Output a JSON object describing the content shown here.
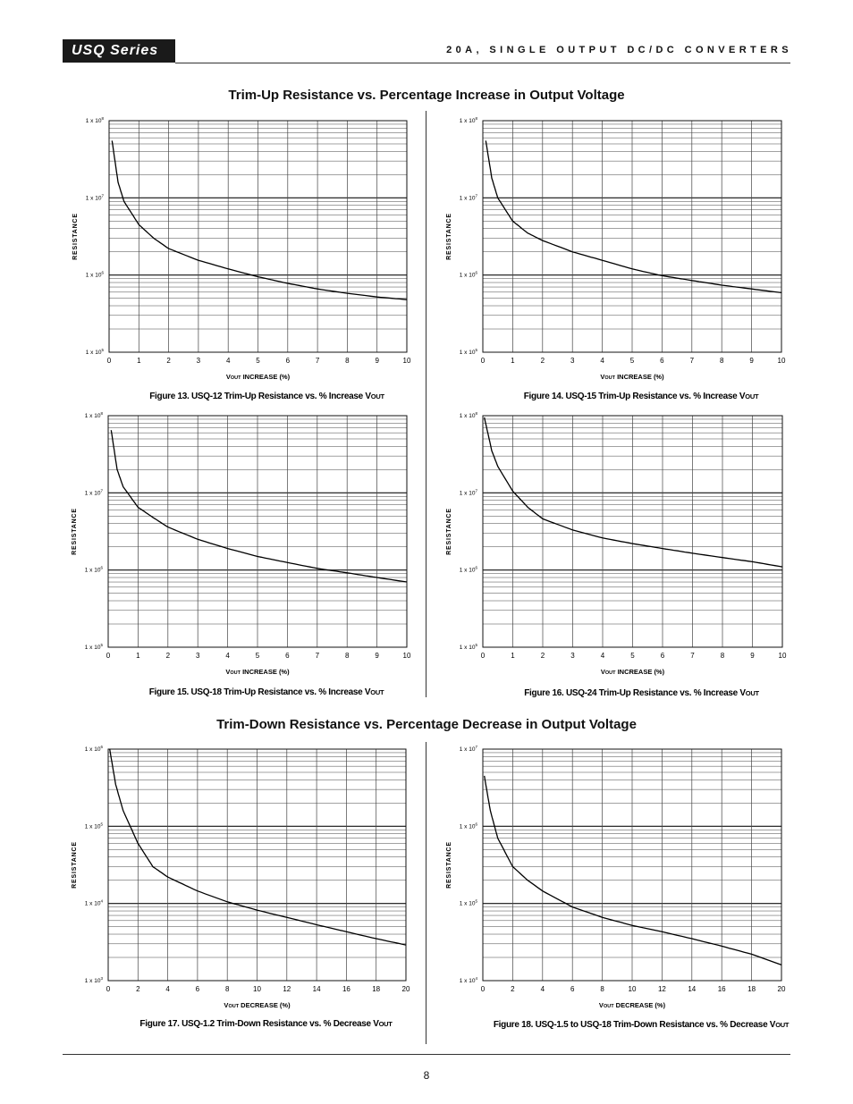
{
  "header": {
    "series_badge": "USQ Series",
    "title": "20A, SINGLE OUTPUT DC/DC CONVERTERS"
  },
  "sections": {
    "trim_up_title": "Trim-Up Resistance vs. Percentage Increase in Output Voltage",
    "trim_down_title": "Trim-Down Resistance vs. Percentage Decrease in Output Voltage"
  },
  "footer": {
    "page_number": "8"
  },
  "colors": {
    "grid": "#444444",
    "curve": "#000000",
    "badge_bg": "#1a1a1a"
  },
  "chart_data": [
    {
      "id": "fig13",
      "type": "line",
      "y_scale": "log",
      "caption_prefix": "Figure 13. USQ-12 Trim-Up Resistance vs. % Increase V",
      "caption_sub": "OUT",
      "xlabel_prefix": "V",
      "xlabel_sub": "OUT",
      "xlabel_suffix": " INCREASE (%)",
      "ylabel": "RESISTANCE",
      "xlim": [
        0,
        10
      ],
      "xticks": [
        "0",
        "1",
        "2",
        "3",
        "4",
        "5",
        "6",
        "7",
        "8",
        "9",
        "10"
      ],
      "ylim_exp": [
        5,
        8
      ],
      "yticks": [
        {
          "base": "1 x 10",
          "exp": "5"
        },
        {
          "base": "1 x 10",
          "exp": "6"
        },
        {
          "base": "1 x 10",
          "exp": "7"
        },
        {
          "base": "1 x 10",
          "exp": "8"
        }
      ],
      "x": [
        0.1,
        0.3,
        0.5,
        1,
        1.5,
        2,
        3,
        4,
        5,
        6,
        7,
        8,
        9,
        10
      ],
      "y": [
        55000000,
        16000000,
        9000000,
        4500000,
        3000000,
        2200000,
        1550000,
        1200000,
        950000,
        780000,
        660000,
        580000,
        520000,
        480000
      ]
    },
    {
      "id": "fig14",
      "type": "line",
      "y_scale": "log",
      "caption_prefix": "Figure 14. USQ-15 Trim-Up Resistance vs. % Increase V",
      "caption_sub": "OUT",
      "xlabel_prefix": "V",
      "xlabel_sub": "OUT",
      "xlabel_suffix": " INCREASE (%)",
      "ylabel": "RESISTANCE",
      "xlim": [
        0,
        10
      ],
      "xticks": [
        "0",
        "1",
        "2",
        "3",
        "4",
        "5",
        "6",
        "7",
        "8",
        "9",
        "10"
      ],
      "ylim_exp": [
        5,
        8
      ],
      "yticks": [
        {
          "base": "1 x 10",
          "exp": "5"
        },
        {
          "base": "1 x 10",
          "exp": "6"
        },
        {
          "base": "1 x 10",
          "exp": "7"
        },
        {
          "base": "1 x 10",
          "exp": "8"
        }
      ],
      "x": [
        0.1,
        0.3,
        0.5,
        1,
        1.5,
        2,
        3,
        4,
        5,
        6,
        7,
        8,
        9,
        10
      ],
      "y": [
        55000000,
        18000000,
        10000000,
        5000000,
        3500000,
        2800000,
        2000000,
        1550000,
        1200000,
        980000,
        850000,
        740000,
        660000,
        590000
      ]
    },
    {
      "id": "fig15",
      "type": "line",
      "y_scale": "log",
      "caption_prefix": "Figure 15. USQ-18 Trim-Up Resistance vs. % Increase V",
      "caption_sub": "OUT",
      "xlabel_prefix": "V",
      "xlabel_sub": "OUT",
      "xlabel_suffix": " INCREASE (%)",
      "ylabel": "RESISTANCE",
      "xlim": [
        0,
        10
      ],
      "xticks": [
        "0",
        "1",
        "2",
        "3",
        "4",
        "5",
        "6",
        "7",
        "8",
        "9",
        "10"
      ],
      "ylim_exp": [
        5,
        8
      ],
      "yticks": [
        {
          "base": "1 x 10",
          "exp": "5"
        },
        {
          "base": "1 x 10",
          "exp": "6"
        },
        {
          "base": "1 x 10",
          "exp": "7"
        },
        {
          "base": "1 x 10",
          "exp": "8"
        }
      ],
      "x": [
        0.1,
        0.3,
        0.5,
        1,
        1.5,
        2,
        3,
        4,
        5,
        6,
        7,
        8,
        9,
        10
      ],
      "y": [
        65000000,
        20000000,
        12000000,
        6500000,
        4800000,
        3600000,
        2500000,
        1900000,
        1500000,
        1250000,
        1050000,
        920000,
        800000,
        700000
      ]
    },
    {
      "id": "fig16",
      "type": "line",
      "y_scale": "log",
      "caption_prefix": "Figure 16. USQ-24 Trim-Up Resistance vs. % Increase V",
      "caption_sub": "OUT",
      "xlabel_prefix": "V",
      "xlabel_sub": "OUT",
      "xlabel_suffix": " INCREASE (%)",
      "ylabel": "RESISTANCE",
      "xlim": [
        0,
        10
      ],
      "xticks": [
        "0",
        "1",
        "2",
        "3",
        "4",
        "5",
        "6",
        "7",
        "8",
        "9",
        "10"
      ],
      "ylim_exp": [
        5,
        8
      ],
      "yticks": [
        {
          "base": "1 x 10",
          "exp": "5"
        },
        {
          "base": "1 x 10",
          "exp": "6"
        },
        {
          "base": "1 x 10",
          "exp": "7"
        },
        {
          "base": "1 x 10",
          "exp": "8"
        }
      ],
      "x": [
        0.05,
        0.3,
        0.5,
        1,
        1.5,
        2,
        3,
        4,
        5,
        6,
        7,
        8,
        9,
        10
      ],
      "y": [
        95000000,
        35000000,
        22000000,
        10500000,
        6500000,
        4600000,
        3300000,
        2600000,
        2200000,
        1900000,
        1650000,
        1450000,
        1280000,
        1100000
      ]
    },
    {
      "id": "fig17",
      "type": "line",
      "y_scale": "log",
      "caption_prefix": "Figure 17. USQ-1.2 Trim-Down Resistance vs. % Decrease V",
      "caption_sub": "OUT",
      "xlabel_prefix": "V",
      "xlabel_sub": "OUT",
      "xlabel_suffix": " DECREASE (%)",
      "ylabel": "RESISTANCE",
      "xlim": [
        0,
        20
      ],
      "xticks": [
        "0",
        "2",
        "4",
        "6",
        "8",
        "10",
        "12",
        "14",
        "16",
        "18",
        "20"
      ],
      "ylim_exp": [
        3,
        6
      ],
      "yticks": [
        {
          "base": "1 x 10",
          "exp": "3"
        },
        {
          "base": "1 x 10",
          "exp": "4"
        },
        {
          "base": "1 x 10",
          "exp": "5"
        },
        {
          "base": "1 x 10",
          "exp": "6"
        }
      ],
      "x": [
        0.1,
        0.5,
        1,
        2,
        3,
        4,
        6,
        8,
        10,
        12,
        14,
        16,
        18,
        20
      ],
      "y": [
        1000000,
        350000,
        160000,
        60000,
        30000,
        22000,
        14500,
        10500,
        8200,
        6600,
        5300,
        4300,
        3500,
        2900
      ]
    },
    {
      "id": "fig18",
      "type": "line",
      "y_scale": "log",
      "caption_prefix": "Figure 18. USQ-1.5 to USQ-18 Trim-Down Resistance vs. % Decrease V",
      "caption_sub": "OUT",
      "xlabel_prefix": "V",
      "xlabel_sub": "OUT",
      "xlabel_suffix": " DECREASE (%)",
      "ylabel": "RESISTANCE",
      "xlim": [
        0,
        20
      ],
      "xticks": [
        "0",
        "2",
        "4",
        "6",
        "8",
        "10",
        "12",
        "14",
        "16",
        "18",
        "20"
      ],
      "ylim_exp": [
        4,
        7
      ],
      "yticks": [
        {
          "base": "1 x 10",
          "exp": "4"
        },
        {
          "base": "1 x 10",
          "exp": "5"
        },
        {
          "base": "1 x 10",
          "exp": "6"
        },
        {
          "base": "1 x 10",
          "exp": "7"
        }
      ],
      "x": [
        0.1,
        0.5,
        1,
        2,
        3,
        4,
        6,
        8,
        10,
        12,
        14,
        16,
        18,
        20
      ],
      "y": [
        4500000,
        1600000,
        700000,
        300000,
        200000,
        145000,
        90000,
        66000,
        52000,
        43000,
        35000,
        28000,
        22000,
        16000
      ]
    }
  ]
}
